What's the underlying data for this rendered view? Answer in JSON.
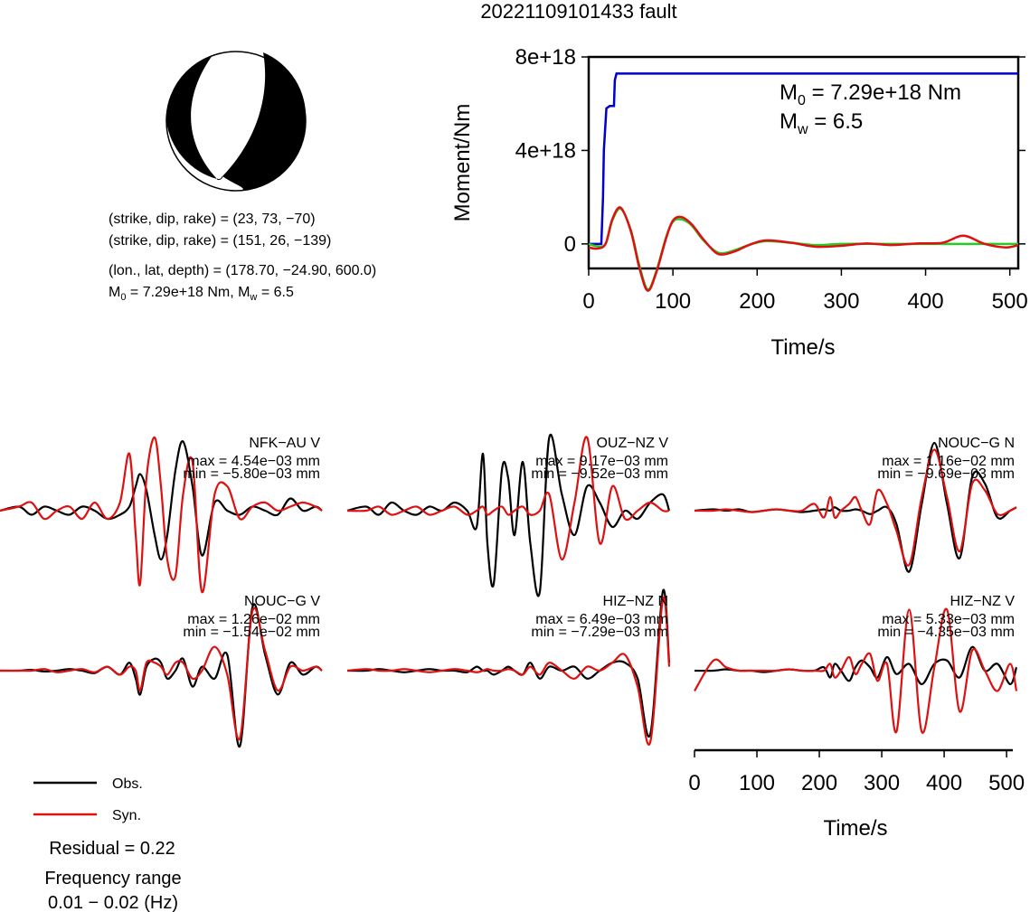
{
  "title": "20221109101433 fault",
  "mechanism": {
    "plane1": "(strike, dip, rake) = (23, 73, −70)",
    "plane2": "(strike, dip, rake) = (151, 26, −139)",
    "location": "(lon., lat, depth) = (178.70, −24.90, 600.0)",
    "m0_label": "M",
    "m0_sub": "0",
    "m0_value": " = 7.29e+18 Nm, M",
    "mw_sub": "w",
    "mw_value": " = 6.5"
  },
  "colors": {
    "obs": "#000000",
    "syn": "#dd1111",
    "cumulative": "#0000cc",
    "rate_syn": "#22cc22",
    "rate_obs": "#dd1111"
  },
  "legend": {
    "obs": "Obs.",
    "syn": "Syn."
  },
  "residual": "Residual = 0.22",
  "frequency": {
    "label": "Frequency range",
    "value": "0.01 − 0.02 (Hz)"
  },
  "chart_data": [
    {
      "type": "line",
      "name": "moment",
      "ylabel": "Moment/Nm",
      "xlabel": "Time/s",
      "xlim": [
        0,
        510
      ],
      "ylim": [
        -1.05e+18,
        8e+18
      ],
      "xticks": [
        0,
        100,
        200,
        300,
        400,
        500
      ],
      "yticks": [
        {
          "v": 0,
          "label": "0"
        },
        {
          "v": 4e+18,
          "label": "4e+18"
        },
        {
          "v": 8e+18,
          "label": "8e+18"
        }
      ],
      "annotation": {
        "m0_label": "M",
        "m0_sub": "0",
        "m0_value": " = 7.29e+18 Nm",
        "mw_label": "M",
        "mw_sub": "w",
        "mw_value": " = 6.5"
      },
      "series": [
        {
          "kind": "cumulative",
          "x": [
            0,
            15,
            17,
            18,
            21,
            25,
            27,
            30,
            31,
            33,
            40,
            100,
            200,
            300,
            400,
            510
          ],
          "y": [
            0,
            0,
            2e+18,
            4e+18,
            5.8e+18,
            5.9e+18,
            5.9e+18,
            5.9e+18,
            7e+18,
            7.29e+18,
            7.29e+18,
            7.29e+18,
            7.29e+18,
            7.29e+18,
            7.29e+18,
            7.29e+18
          ]
        },
        {
          "kind": "rate_syn",
          "x": [
            0,
            10,
            20,
            28,
            38,
            50,
            60,
            70,
            80,
            92,
            100,
            110,
            122,
            135,
            150,
            160,
            175,
            190,
            210,
            240,
            270,
            300,
            350,
            400,
            450,
            510
          ],
          "y": [
            0,
            -1e+17,
            0,
            1e+18,
            1.5e+18,
            6e+17,
            -9e+17,
            -1.95e+18,
            -1.2e+18,
            3e+17,
            9.5e+17,
            1.05e+18,
            8e+17,
            2e+17,
            -3e+17,
            -4e+17,
            -2.5e+17,
            -5e+16,
            1.2e+17,
            5e+16,
            -5e+16,
            0,
            0,
            0,
            0,
            0
          ]
        },
        {
          "kind": "rate_obs",
          "x": [
            0,
            10,
            20,
            28,
            38,
            50,
            60,
            70,
            80,
            92,
            100,
            110,
            122,
            135,
            150,
            160,
            175,
            190,
            210,
            240,
            270,
            300,
            330,
            360,
            390,
            420,
            445,
            470,
            495,
            510
          ],
          "y": [
            -1.5e+17,
            -2e+17,
            0,
            1.05e+18,
            1.55e+18,
            5.5e+17,
            -1e+18,
            -2e+18,
            -1.25e+18,
            2.5e+17,
            1e+18,
            1.15e+18,
            8.5e+17,
            2.5e+17,
            -3.5e+17,
            -4.5e+17,
            -3e+17,
            -5e+16,
            1.5e+17,
            5e+16,
            -1.2e+17,
            -8e+16,
            2e+16,
            -5e+16,
            2e+16,
            5e+16,
            3.5e+17,
            0.0,
            -1.5e+17,
            -5e+16
          ]
        }
      ]
    },
    {
      "type": "line",
      "name": "waveforms",
      "xlabel": "Time/s",
      "xlim": [
        0,
        510
      ],
      "xticks": [
        0,
        100,
        200,
        300,
        400,
        500
      ],
      "panels": [
        {
          "label": "NFK−AU V",
          "max": "max = 4.54e−03 mm",
          "min": "min = −5.80e−03 mm",
          "x": [
            0,
            30,
            50,
            70,
            90,
            110,
            130,
            150,
            170,
            190,
            205,
            215,
            222,
            232,
            245,
            255,
            265,
            278,
            290,
            305,
            320,
            340,
            360,
            380,
            400,
            420,
            440,
            460,
            480,
            500,
            510
          ],
          "obs": [
            0,
            0.05,
            -0.05,
            0.05,
            0,
            -0.05,
            0.05,
            0,
            -0.1,
            -0.05,
            0.05,
            0.3,
            0.45,
            0.25,
            -0.3,
            -0.6,
            -0.3,
            0.5,
            0.85,
            0.3,
            -0.55,
            0.1,
            0.0,
            -0.05,
            0.05,
            0.0,
            -0.05,
            0.15,
            0.0,
            0.05,
            0
          ],
          "syn": [
            0,
            0.05,
            0.1,
            -0.1,
            0,
            0.05,
            -0.1,
            0.1,
            -0.1,
            0.1,
            0.7,
            -0.3,
            -0.9,
            0.4,
            0.9,
            0.3,
            -0.6,
            -0.8,
            0.2,
            0.6,
            -1.0,
            0.2,
            0.3,
            -0.1,
            0.05,
            0.1,
            0.0,
            0.05,
            0.1,
            0.05,
            0
          ]
        },
        {
          "label": "OUZ−NZ V",
          "max": "max = 9.17e−03 mm",
          "min": "min = −9.52e−03 mm",
          "x": [
            0,
            30,
            50,
            70,
            90,
            110,
            130,
            150,
            170,
            190,
            205,
            215,
            222,
            232,
            245,
            255,
            265,
            278,
            290,
            305,
            320,
            340,
            360,
            380,
            400,
            420,
            440,
            460,
            480,
            500,
            510
          ],
          "obs": [
            0,
            0.05,
            -0.05,
            0.1,
            0,
            -0.05,
            0.05,
            0,
            0.1,
            0.0,
            -0.2,
            0.7,
            -0.4,
            -0.9,
            0.5,
            0.4,
            -0.3,
            0.6,
            -0.4,
            -1.0,
            0.9,
            0.2,
            -0.3,
            0.3,
            0.1,
            -0.2,
            0.0,
            -0.1,
            0.1,
            0.2,
            0
          ],
          "syn": [
            0,
            0.0,
            0.05,
            -0.05,
            0.0,
            0.05,
            -0.05,
            0.0,
            0.05,
            -0.05,
            0.0,
            0.05,
            -0.05,
            0.0,
            0.05,
            -0.05,
            0.0,
            0.05,
            -0.05,
            0.0,
            0.2,
            -0.6,
            0.1,
            0.9,
            -0.4,
            0.3,
            -0.1,
            0.0,
            0.1,
            0.0,
            0
          ]
        },
        {
          "label": "NOUC−G N",
          "max": "max = 1.16e−02 mm",
          "min": "min = −9.69e−03 mm",
          "x": [
            0,
            30,
            50,
            70,
            90,
            110,
            130,
            150,
            170,
            190,
            205,
            215,
            222,
            232,
            245,
            255,
            265,
            278,
            290,
            305,
            320,
            340,
            360,
            380,
            400,
            420,
            440,
            460,
            480,
            500,
            510
          ],
          "obs": [
            0,
            0.02,
            0.0,
            0.02,
            -0.02,
            0.0,
            0.02,
            0.0,
            -0.02,
            0.0,
            0.02,
            0.0,
            0.05,
            0.0,
            0.0,
            0.02,
            0.0,
            -0.05,
            0.0,
            0.05,
            -0.2,
            -0.9,
            0.1,
            1.0,
            0.1,
            -0.7,
            0.5,
            0.4,
            -0.1,
            0.0,
            0.05
          ],
          "syn": [
            0,
            0.0,
            0.02,
            0.0,
            -0.02,
            0.0,
            0.02,
            0.0,
            0.0,
            0.1,
            -0.1,
            0.2,
            -0.1,
            0.0,
            0.1,
            0.2,
            0.0,
            -0.2,
            0.3,
            0.1,
            -0.3,
            -0.8,
            0.2,
            0.9,
            0.2,
            -0.6,
            0.4,
            0.3,
            -0.05,
            0.0,
            0.05
          ]
        },
        {
          "label": "NOUC−G V",
          "max": "max = 1.26e−02 mm",
          "min": "min = −1.54e−02 mm",
          "x": [
            0,
            30,
            50,
            70,
            90,
            110,
            130,
            150,
            170,
            190,
            205,
            215,
            222,
            232,
            245,
            255,
            265,
            278,
            290,
            305,
            320,
            340,
            360,
            380,
            400,
            420,
            440,
            460,
            480,
            500,
            510
          ],
          "obs": [
            0,
            0.0,
            0.01,
            -0.01,
            0.0,
            0.02,
            0.0,
            -0.03,
            0.05,
            -0.05,
            0.1,
            -0.1,
            -0.3,
            0.05,
            0.15,
            0.1,
            -0.1,
            0.0,
            0.15,
            -0.2,
            0.05,
            -0.1,
            0.2,
            -0.95,
            0.8,
            0.2,
            -0.3,
            0.1,
            -0.05,
            0.05,
            0.0
          ],
          "syn": [
            0,
            0.0,
            0.0,
            0.02,
            -0.02,
            0.0,
            0.02,
            -0.02,
            0.05,
            -0.05,
            0.05,
            0.0,
            -0.25,
            0.1,
            0.1,
            0.05,
            -0.05,
            0.1,
            0.1,
            -0.1,
            0.0,
            0.3,
            -0.05,
            -0.85,
            0.75,
            0.25,
            -0.25,
            0.05,
            0.0,
            0.05,
            0.0
          ]
        },
        {
          "label": "HIZ−NZ N",
          "max": "max = 6.49e−03 mm",
          "min": "min = −7.29e−03 mm",
          "x": [
            0,
            30,
            50,
            70,
            90,
            110,
            130,
            150,
            170,
            190,
            205,
            215,
            222,
            232,
            245,
            255,
            265,
            278,
            290,
            305,
            320,
            340,
            360,
            380,
            400,
            420,
            440,
            460,
            480,
            500,
            510
          ],
          "obs": [
            0,
            0.0,
            0.02,
            0.0,
            -0.02,
            0.0,
            0.02,
            0.0,
            0.0,
            -0.02,
            0.05,
            0.0,
            0.0,
            -0.05,
            0.0,
            0.05,
            0.0,
            -0.05,
            0.1,
            -0.1,
            0.05,
            0.0,
            0.05,
            -0.1,
            0.0,
            0.1,
            0.1,
            -0.1,
            -0.8,
            1.0,
            0.1
          ],
          "syn": [
            0,
            0.02,
            0.0,
            0.0,
            0.02,
            0.0,
            -0.02,
            0.0,
            0.02,
            0.0,
            -0.02,
            0.0,
            0.02,
            0.0,
            0.0,
            0.02,
            0.0,
            -0.05,
            0.05,
            -0.05,
            0.1,
            0.0,
            -0.1,
            0.05,
            0.0,
            0.1,
            0.2,
            -0.2,
            -0.9,
            0.9,
            0.05
          ]
        },
        {
          "label": "HIZ−NZ V",
          "max": "max = 5.33e−03 mm",
          "min": "min = −4.35e−03 mm",
          "x": [
            0,
            30,
            50,
            70,
            90,
            110,
            130,
            150,
            170,
            190,
            205,
            215,
            222,
            232,
            245,
            255,
            265,
            278,
            290,
            305,
            320,
            340,
            360,
            380,
            400,
            420,
            440,
            460,
            480,
            500,
            510
          ],
          "obs": [
            0,
            0.0,
            0.02,
            0.0,
            0.0,
            -0.02,
            0.0,
            0.02,
            0.0,
            0.0,
            0.05,
            -0.1,
            0.1,
            0.0,
            -0.15,
            0.05,
            0.15,
            0.05,
            -0.1,
            0.2,
            -0.05,
            0.1,
            -0.2,
            0.1,
            0.15,
            -0.1,
            0.35,
            0.0,
            0.1,
            -0.2,
            0.05
          ],
          "syn": [
            -0.3,
            0.15,
            0.05,
            0.0,
            0.0,
            0.0,
            0.0,
            0.02,
            0.0,
            0.0,
            0.0,
            0.1,
            -0.1,
            0.0,
            0.2,
            -0.05,
            0.1,
            0.25,
            -0.15,
            0.1,
            -0.9,
            0.9,
            -0.9,
            0.05,
            0.9,
            -0.6,
            0.3,
            0.0,
            -0.3,
            0.1,
            -0.3
          ]
        }
      ]
    }
  ]
}
